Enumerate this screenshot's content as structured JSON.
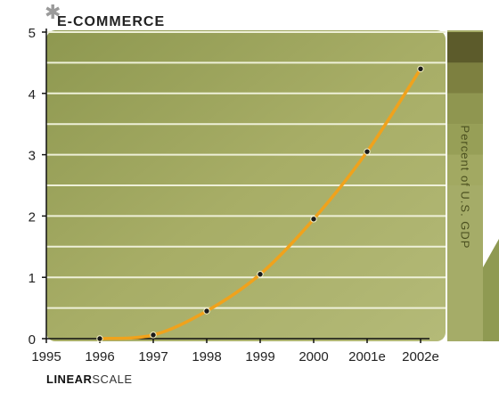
{
  "title": "E-COMMERCE",
  "scale_label": {
    "bold": "LINEAR",
    "light": "SCALE"
  },
  "chart_data": {
    "type": "line",
    "title": "E-COMMERCE",
    "xlabel": "",
    "ylabel": "Percent of U.S. GDP",
    "x_ticks": [
      "1995",
      "1996",
      "1997",
      "1998",
      "1999",
      "2000",
      "2001e",
      "2002e"
    ],
    "y_ticks": [
      "0",
      "1",
      "2",
      "3",
      "4",
      "5"
    ],
    "xlim": [
      1995,
      2002
    ],
    "ylim": [
      0,
      5
    ],
    "grid": true,
    "series": [
      {
        "x": [
          1996,
          1997,
          1998,
          1999,
          2000,
          2001,
          2002
        ],
        "values": [
          0.0,
          0.06,
          0.45,
          1.05,
          1.95,
          3.05,
          4.4
        ]
      }
    ],
    "colors": {
      "line": "#f0a21c",
      "marker": "#1a1a1a",
      "panel": "#9aa35a",
      "scale_bar": "#5b5a2c"
    }
  }
}
